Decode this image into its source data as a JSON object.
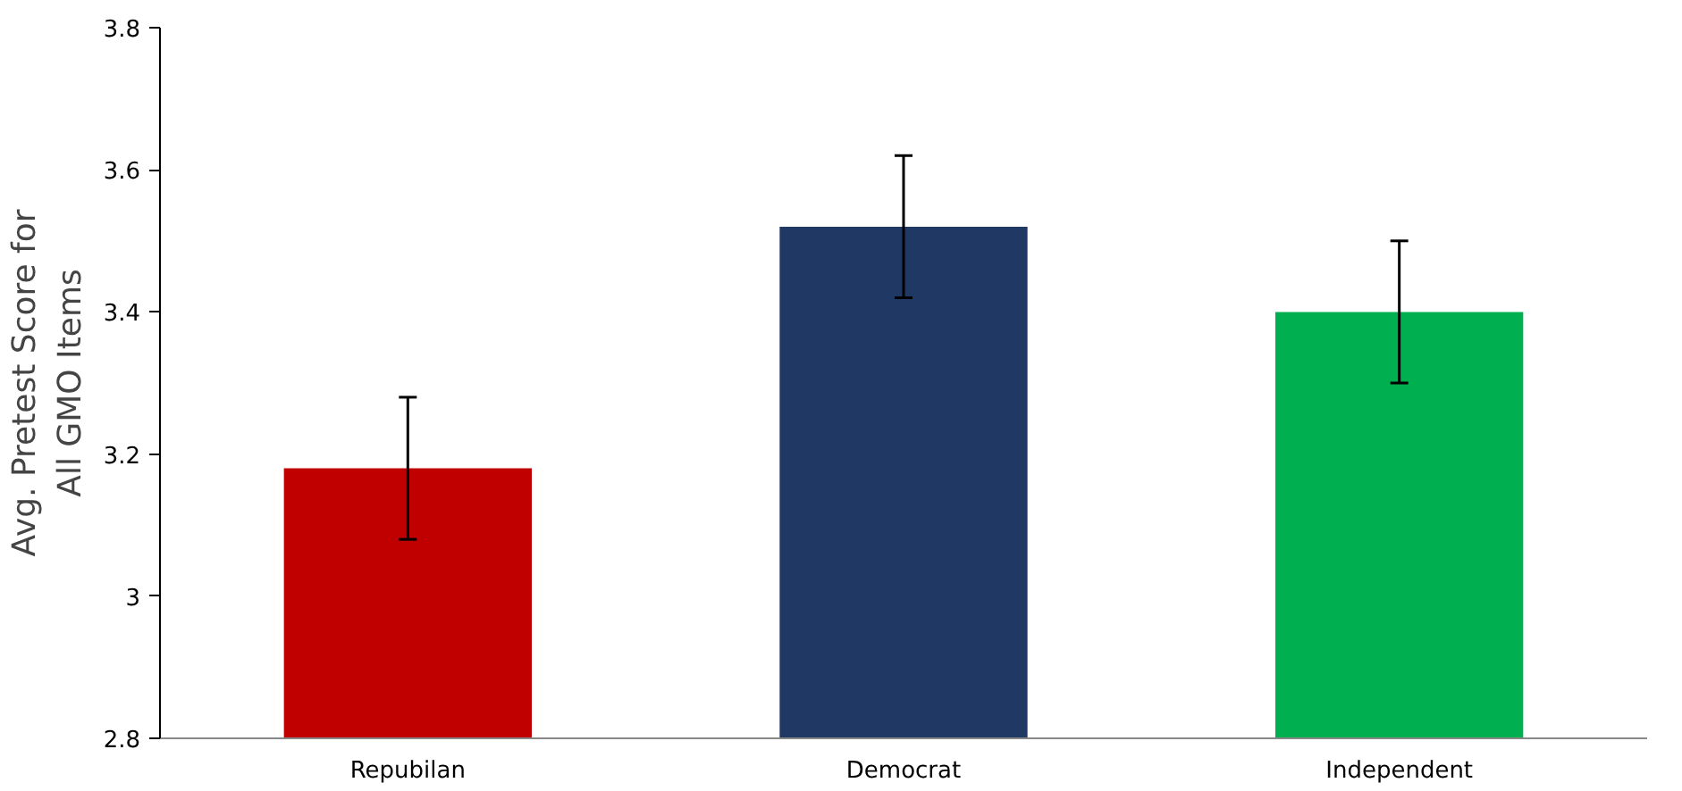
{
  "chart_data": {
    "type": "bar",
    "ylabel": "Avg. Pretest Score for\nAll GMO Items",
    "categories": [
      "Repubilan",
      "Democrat",
      "Independent"
    ],
    "values": [
      3.18,
      3.52,
      3.4
    ],
    "colors": [
      "#c00000",
      "#1f3864",
      "#00b050"
    ],
    "errors": [
      0.1,
      0.1,
      0.1
    ],
    "ylim": [
      2.8,
      3.8
    ],
    "yticks": [
      2.8,
      3,
      3.2,
      3.4,
      3.6,
      3.8
    ],
    "grid": false
  }
}
